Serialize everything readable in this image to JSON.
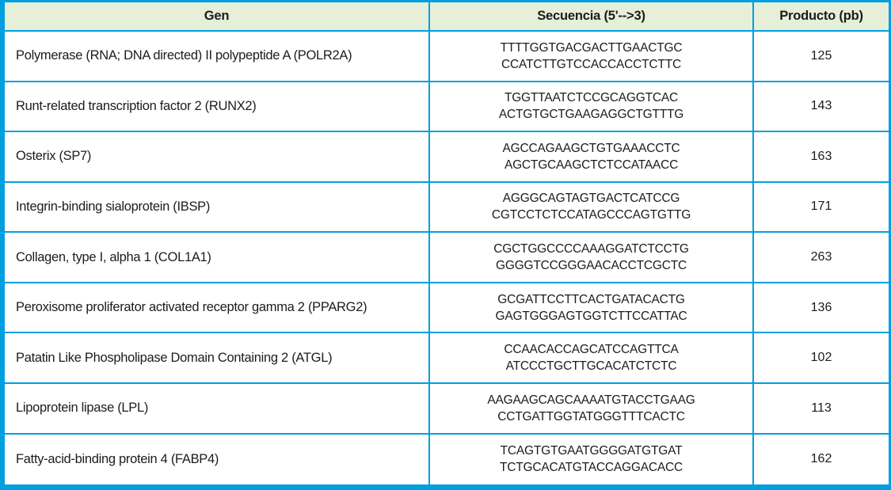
{
  "colors": {
    "border": "#009fe0",
    "header_bg": "#e6efd8"
  },
  "table": {
    "columns": {
      "gen": "Gen",
      "secuencia": "Secuencia (5'-->3)",
      "producto": "Producto (pb)"
    },
    "rows": [
      {
        "gen": "Polymerase (RNA; DNA directed) II polypeptide A (POLR2A)",
        "seq_forward": "TTTTGGTGACGACTTGAACTGC",
        "seq_reverse": "CCATCTTGTCCACCACCTCTTC",
        "producto": "125"
      },
      {
        "gen": "Runt-related transcription factor 2 (RUNX2)",
        "seq_forward": "TGGTTAATCTCCGCAGGTCAC",
        "seq_reverse": "ACTGTGCTGAAGAGGCTGTTTG",
        "producto": "143"
      },
      {
        "gen": "Osterix (SP7)",
        "seq_forward": "AGCCAGAAGCTGTGAAACCTC",
        "seq_reverse": "AGCTGCAAGCTCTCCATAACC",
        "producto": "163"
      },
      {
        "gen": "Integrin-binding sialoprotein (IBSP)",
        "seq_forward": "AGGGCAGTAGTGACTCATCCG",
        "seq_reverse": "CGTCCTCTCCATAGCCCAGTGTTG",
        "producto": "171"
      },
      {
        "gen": "Collagen, type I, alpha 1 (COL1A1)",
        "seq_forward": "CGCTGGCCCCAAAGGATCTCCTG",
        "seq_reverse": "GGGGTCCGGGAACACCTCGCTC",
        "producto": "263"
      },
      {
        "gen": "Peroxisome proliferator activated receptor gamma 2 (PPARG2)",
        "seq_forward": "GCGATTCCTTCACTGATACACTG",
        "seq_reverse": "GAGTGGGAGTGGTCTTCCATTAC",
        "producto": "136"
      },
      {
        "gen": "Patatin Like Phospholipase Domain Containing 2 (ATGL)",
        "seq_forward": "CCAACACCAGCATCCAGTTCA",
        "seq_reverse": "ATCCCTGCTTGCACATCTCTC",
        "producto": "102"
      },
      {
        "gen": "Lipoprotein lipase (LPL)",
        "seq_forward": "AAGAAGCAGCAAAATGTACCTGAAG",
        "seq_reverse": "CCTGATTGGTATGGGTTTCACTC",
        "producto": "113"
      },
      {
        "gen": "Fatty-acid-binding protein 4 (FABP4)",
        "seq_forward": "TCAGTGTGAATGGGGATGTGAT",
        "seq_reverse": "TCTGCACATGTACCAGGACACC",
        "producto": "162"
      }
    ]
  }
}
